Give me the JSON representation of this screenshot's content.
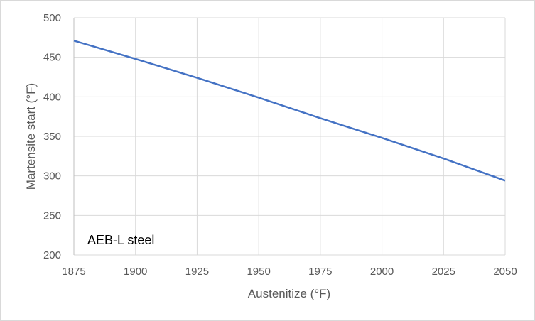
{
  "chart_data": {
    "type": "line",
    "title": "",
    "xlabel": "Austenitize (°F)",
    "ylabel": "Martensite start (°F)",
    "annotation": "AEB-L steel",
    "xlim": [
      1875,
      2050
    ],
    "ylim": [
      200,
      500
    ],
    "xticks": [
      1875,
      1900,
      1925,
      1950,
      1975,
      2000,
      2025,
      2050
    ],
    "yticks": [
      200,
      250,
      300,
      350,
      400,
      450,
      500
    ],
    "grid": true,
    "legend": "none",
    "series": [
      {
        "name": "AEB-L steel",
        "color": "#4472c4",
        "x": [
          1875,
          1900,
          1925,
          1950,
          1975,
          2000,
          2025,
          2050
        ],
        "y": [
          471,
          448,
          424,
          399,
          373,
          348,
          322,
          294
        ]
      }
    ]
  }
}
